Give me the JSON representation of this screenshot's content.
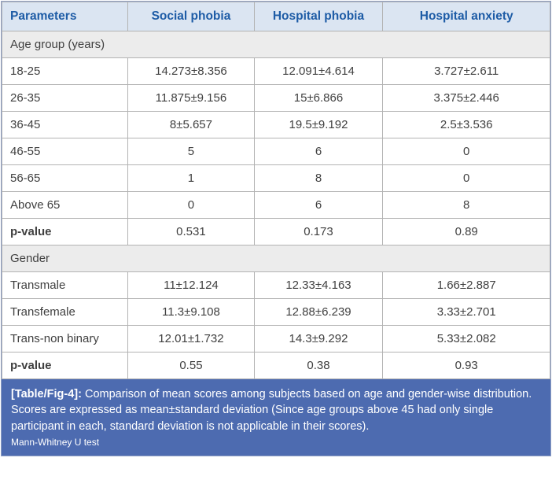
{
  "table": {
    "columns": [
      "Parameters",
      "Social phobia",
      "Hospital phobia",
      "Hospital anxiety"
    ],
    "sections": [
      {
        "title": "Age group (years)",
        "rows": [
          {
            "label": "18-25",
            "values": [
              "14.273±8.356",
              "12.091±4.614",
              "3.727±2.611"
            ]
          },
          {
            "label": "26-35",
            "values": [
              "11.875±9.156",
              "15±6.866",
              "3.375±2.446"
            ]
          },
          {
            "label": "36-45",
            "values": [
              "8±5.657",
              "19.5±9.192",
              "2.5±3.536"
            ]
          },
          {
            "label": "46-55",
            "values": [
              "5",
              "6",
              "0"
            ]
          },
          {
            "label": "56-65",
            "values": [
              "1",
              "8",
              "0"
            ]
          },
          {
            "label": "Above 65",
            "values": [
              "0",
              "6",
              "8"
            ]
          },
          {
            "label": "p-value",
            "values": [
              "0.531",
              "0.173",
              "0.89"
            ]
          }
        ]
      },
      {
        "title": "Gender",
        "rows": [
          {
            "label": "Transmale",
            "values": [
              "11±12.124",
              "12.33±4.163",
              "1.66±2.887"
            ]
          },
          {
            "label": "Transfemale",
            "values": [
              "11.3±9.108",
              "12.88±6.239",
              "3.33±2.701"
            ]
          },
          {
            "label": "Trans-non binary",
            "values": [
              "12.01±1.732",
              "14.3±9.292",
              "5.33±2.082"
            ]
          },
          {
            "label": "p-value",
            "values": [
              "0.55",
              "0.38",
              "0.93"
            ]
          }
        ]
      }
    ]
  },
  "caption": {
    "label": "[Table/Fig-4]:",
    "text": "Comparison of mean scores among subjects based on age and gender-wise distribution.",
    "note": "Scores are expressed as mean±standard deviation (Since age groups above 45 had only single participant in each, standard deviation is not applicable in their scores).",
    "test": "Mann-Whitney U test"
  },
  "colors": {
    "header_bg": "#dbe5f2",
    "header_text": "#1e5ca6",
    "section_bg": "#ececec",
    "footer_bg": "#4d6bb0",
    "border": "#b3b3b3"
  }
}
